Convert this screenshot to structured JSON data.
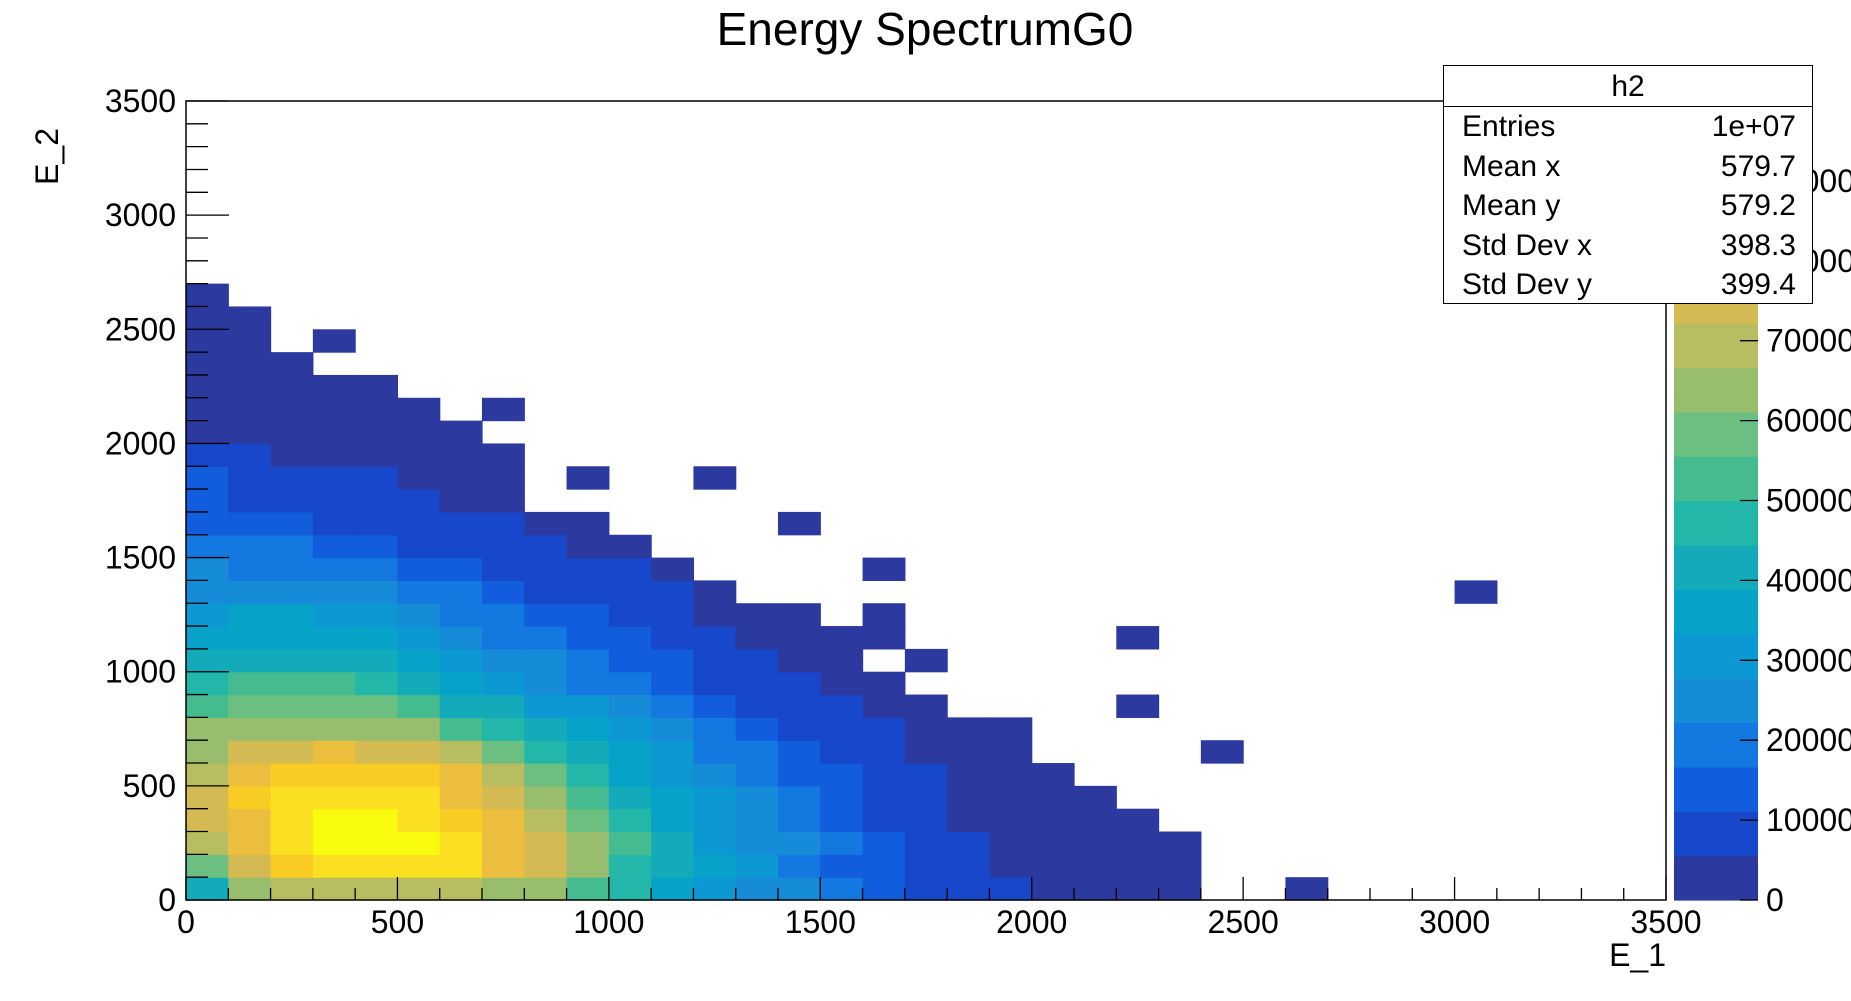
{
  "chart_data": {
    "type": "heatmap",
    "title": "Energy SpectrumG0",
    "xlabel": "E_1",
    "ylabel": "E_2",
    "xlim": [
      0,
      3500
    ],
    "ylim": [
      0,
      3500
    ],
    "bin_width": 100,
    "x_ticks": [
      "0",
      "500",
      "1000",
      "1500",
      "2000",
      "2500",
      "3000",
      "3500"
    ],
    "y_ticks": [
      "0",
      "500",
      "1000",
      "1500",
      "2000",
      "2500",
      "3000",
      "3500"
    ],
    "z_ticks": [
      "0",
      "10000",
      "20000",
      "30000",
      "40000",
      "50000",
      "60000",
      "70000",
      "80000",
      "90000"
    ],
    "zlim": [
      0,
      100000
    ],
    "palette": [
      "#2c3aa0",
      "#1747ca",
      "#115ddd",
      "#1378df",
      "#168bd8",
      "#0c98d2",
      "#06a2c8",
      "#13abb9",
      "#23b7a9",
      "#44bc90",
      "#6bbf80",
      "#98be6d",
      "#b8bd62",
      "#d4ba52",
      "#ecbe3e",
      "#f9cc24",
      "#fae021",
      "#f9fb0e"
    ],
    "rows_note": "each row = one E_2 bin starting at 0 (bottom), each entry = bin count for E_1 bins starting at 0; 0 = empty",
    "rows": [
      [
        43000,
        62000,
        70000,
        71000,
        72000,
        72000,
        70000,
        66000,
        62000,
        55000,
        45000,
        36000,
        32000,
        27000,
        25000,
        20000,
        15000,
        11000,
        9000,
        7000,
        3000,
        2000,
        1500,
        1200,
        0,
        0,
        700,
        0,
        0,
        0,
        0,
        0,
        0,
        0,
        0
      ],
      [
        58000,
        74000,
        86000,
        93000,
        92000,
        93000,
        92000,
        80000,
        76000,
        64000,
        48000,
        42000,
        38000,
        29000,
        22000,
        16000,
        13000,
        9000,
        7000,
        5000,
        3000,
        2500,
        1800,
        1200,
        0,
        0,
        0,
        0,
        0,
        0,
        0,
        0,
        0,
        0,
        0
      ],
      [
        70000,
        82000,
        93000,
        100000,
        99000,
        98000,
        93000,
        82000,
        76000,
        63000,
        50000,
        42000,
        32000,
        27000,
        23000,
        17000,
        12000,
        8000,
        6000,
        4500,
        3000,
        2000,
        1500,
        1000,
        0,
        0,
        0,
        0,
        0,
        0,
        0,
        0,
        0,
        0,
        0
      ],
      [
        74000,
        82000,
        94000,
        98000,
        98000,
        93000,
        88000,
        80000,
        70000,
        57000,
        47000,
        38000,
        32000,
        27000,
        20000,
        15000,
        11000,
        8000,
        5000,
        4000,
        3000,
        2000,
        1500,
        0,
        0,
        0,
        0,
        0,
        0,
        0,
        0,
        0,
        0,
        0,
        0
      ],
      [
        75000,
        84000,
        92000,
        92000,
        92000,
        90000,
        80000,
        74000,
        63000,
        53000,
        44000,
        35000,
        29000,
        23000,
        19000,
        14000,
        10000,
        7000,
        5000,
        4000,
        3000,
        2000,
        0,
        0,
        0,
        0,
        0,
        0,
        0,
        0,
        0,
        0,
        0,
        0,
        0
      ],
      [
        70000,
        78000,
        86000,
        88000,
        88000,
        85000,
        79000,
        68000,
        58000,
        48000,
        38000,
        32000,
        25000,
        20000,
        16000,
        12000,
        9000,
        7000,
        5000,
        3000,
        2000,
        0,
        0,
        0,
        0,
        0,
        0,
        0,
        0,
        0,
        0,
        0,
        0,
        0,
        0
      ],
      [
        66000,
        75000,
        77000,
        79000,
        77000,
        74000,
        67000,
        60000,
        49000,
        41000,
        35000,
        28000,
        22000,
        17000,
        13000,
        9000,
        7000,
        5000,
        3500,
        2000,
        0,
        0,
        0,
        0,
        700,
        0,
        0,
        0,
        0,
        0,
        0,
        0,
        0,
        0,
        0
      ],
      [
        62000,
        66000,
        66000,
        66000,
        65000,
        63000,
        55000,
        49000,
        43000,
        36000,
        30000,
        24000,
        18000,
        14000,
        10000,
        8000,
        6000,
        4000,
        2500,
        1500,
        0,
        0,
        0,
        0,
        0,
        0,
        0,
        0,
        0,
        0,
        0,
        0,
        0,
        0,
        0
      ],
      [
        51000,
        58000,
        58000,
        58000,
        58000,
        54000,
        43000,
        40000,
        33000,
        29000,
        24000,
        19000,
        15000,
        11000,
        8000,
        6000,
        4000,
        2500,
        0,
        0,
        0,
        0,
        700,
        0,
        0,
        0,
        0,
        0,
        0,
        0,
        0,
        0,
        0,
        0,
        0
      ],
      [
        45000,
        50000,
        50000,
        50000,
        46000,
        42000,
        36000,
        32000,
        27000,
        22000,
        18000,
        15000,
        11000,
        8000,
        6000,
        4500,
        3000,
        0,
        0,
        0,
        0,
        0,
        0,
        0,
        0,
        0,
        0,
        0,
        0,
        0,
        0,
        0,
        0,
        0,
        0
      ],
      [
        42000,
        44000,
        44000,
        44000,
        40000,
        36000,
        31000,
        27000,
        23000,
        18000,
        15000,
        12000,
        9000,
        7000,
        5000,
        4000,
        0,
        2000,
        0,
        0,
        0,
        0,
        0,
        0,
        0,
        0,
        0,
        0,
        0,
        0,
        0,
        0,
        0,
        0,
        0
      ],
      [
        38000,
        38000,
        38000,
        37000,
        35000,
        31000,
        27000,
        22000,
        17000,
        14000,
        12000,
        9000,
        7000,
        5000,
        4000,
        3000,
        2000,
        0,
        0,
        0,
        0,
        0,
        700,
        0,
        0,
        0,
        0,
        0,
        0,
        0,
        0,
        0,
        0,
        0,
        0
      ],
      [
        32000,
        34000,
        34000,
        33000,
        28000,
        26000,
        22000,
        18000,
        15000,
        12000,
        9000,
        7000,
        5000,
        4000,
        3000,
        0,
        2000,
        0,
        0,
        0,
        0,
        0,
        0,
        0,
        0,
        0,
        0,
        0,
        0,
        0,
        0,
        0,
        0,
        0,
        0
      ],
      [
        27000,
        27000,
        27000,
        25000,
        23000,
        21000,
        17000,
        14000,
        11000,
        9000,
        7000,
        6000,
        4500,
        0,
        0,
        0,
        0,
        0,
        0,
        0,
        0,
        0,
        0,
        0,
        0,
        0,
        0,
        0,
        0,
        0,
        700,
        0,
        0,
        0,
        0
      ],
      [
        23000,
        22000,
        22000,
        20000,
        18000,
        16000,
        13000,
        11000,
        9000,
        7000,
        6000,
        5000,
        0,
        0,
        0,
        0,
        600,
        0,
        0,
        0,
        0,
        0,
        0,
        0,
        0,
        0,
        0,
        0,
        0,
        0,
        0,
        0,
        0,
        0,
        0
      ],
      [
        19000,
        18000,
        17000,
        15000,
        13000,
        11000,
        9000,
        8000,
        7000,
        5000,
        4000,
        0,
        0,
        0,
        0,
        0,
        0,
        0,
        0,
        0,
        0,
        0,
        0,
        0,
        0,
        0,
        0,
        0,
        0,
        0,
        0,
        0,
        0,
        0,
        0
      ],
      [
        15000,
        14000,
        13000,
        11000,
        9000,
        8000,
        7000,
        6000,
        5000,
        4000,
        0,
        0,
        0,
        0,
        600,
        0,
        0,
        0,
        0,
        0,
        0,
        0,
        0,
        0,
        0,
        0,
        0,
        0,
        0,
        0,
        0,
        0,
        0,
        0,
        0
      ],
      [
        12000,
        11000,
        10000,
        8000,
        7000,
        6000,
        5000,
        4000,
        0,
        0,
        0,
        0,
        0,
        0,
        0,
        0,
        0,
        0,
        0,
        0,
        0,
        0,
        0,
        0,
        0,
        0,
        0,
        0,
        0,
        0,
        0,
        0,
        0,
        0,
        0
      ],
      [
        12000,
        10000,
        9000,
        7000,
        6000,
        5000,
        4000,
        3000,
        0,
        700,
        0,
        0,
        800,
        0,
        0,
        0,
        0,
        0,
        0,
        0,
        0,
        0,
        0,
        0,
        0,
        0,
        0,
        0,
        0,
        0,
        0,
        0,
        0,
        0,
        0
      ],
      [
        7000,
        6000,
        5000,
        4000,
        3500,
        2500,
        2000,
        1500,
        0,
        0,
        0,
        0,
        0,
        0,
        0,
        0,
        0,
        0,
        0,
        0,
        0,
        0,
        0,
        0,
        0,
        0,
        0,
        0,
        0,
        0,
        0,
        0,
        0,
        0,
        0
      ],
      [
        5000,
        4000,
        3000,
        2500,
        2000,
        1500,
        1000,
        0,
        0,
        0,
        0,
        0,
        0,
        0,
        0,
        0,
        0,
        0,
        0,
        0,
        0,
        0,
        0,
        0,
        0,
        0,
        0,
        0,
        0,
        0,
        0,
        0,
        0,
        0,
        0
      ],
      [
        3500,
        3000,
        2500,
        2000,
        1500,
        1000,
        0,
        700,
        0,
        0,
        0,
        0,
        0,
        0,
        0,
        0,
        0,
        0,
        0,
        0,
        0,
        0,
        0,
        0,
        0,
        0,
        0,
        0,
        0,
        0,
        0,
        0,
        0,
        0,
        0
      ],
      [
        2500,
        2000,
        1500,
        1000,
        1000,
        0,
        0,
        0,
        0,
        0,
        0,
        0,
        0,
        0,
        0,
        0,
        0,
        0,
        0,
        0,
        0,
        0,
        0,
        0,
        0,
        0,
        0,
        0,
        0,
        0,
        0,
        0,
        0,
        0,
        0
      ],
      [
        1800,
        1500,
        1000,
        0,
        0,
        0,
        0,
        0,
        0,
        0,
        0,
        0,
        0,
        0,
        0,
        0,
        0,
        0,
        0,
        0,
        0,
        0,
        0,
        0,
        0,
        0,
        0,
        0,
        0,
        0,
        0,
        0,
        0,
        0,
        0
      ],
      [
        1500,
        1000,
        0,
        700,
        0,
        0,
        0,
        0,
        0,
        0,
        0,
        0,
        0,
        0,
        0,
        0,
        0,
        0,
        0,
        0,
        0,
        0,
        0,
        0,
        0,
        0,
        0,
        0,
        0,
        0,
        0,
        0,
        0,
        0,
        0
      ],
      [
        1000,
        800,
        0,
        0,
        0,
        0,
        0,
        0,
        0,
        0,
        0,
        0,
        0,
        0,
        0,
        0,
        0,
        0,
        0,
        0,
        0,
        0,
        0,
        0,
        0,
        0,
        0,
        0,
        0,
        0,
        0,
        0,
        0,
        0,
        0
      ],
      [
        800,
        0,
        0,
        0,
        0,
        0,
        0,
        0,
        0,
        0,
        0,
        0,
        0,
        0,
        0,
        0,
        0,
        0,
        0,
        0,
        0,
        0,
        0,
        0,
        0,
        0,
        0,
        0,
        0,
        0,
        0,
        0,
        0,
        0,
        0
      ]
    ]
  },
  "stats": {
    "title": "h2",
    "rows": [
      {
        "label": "Entries",
        "value": "1e+07"
      },
      {
        "label": "Mean x",
        "value": "579.7"
      },
      {
        "label": "Mean y",
        "value": "579.2"
      },
      {
        "label": "Std Dev x",
        "value": "398.3"
      },
      {
        "label": "Std Dev y",
        "value": "399.4"
      }
    ]
  }
}
